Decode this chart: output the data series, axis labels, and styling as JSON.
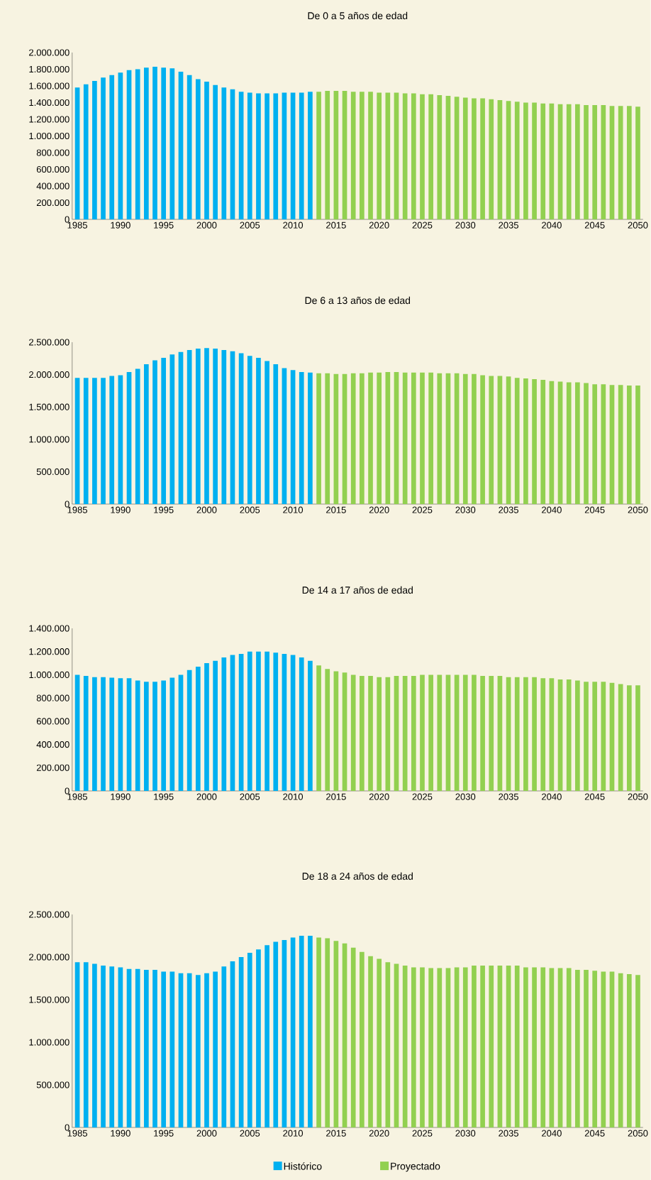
{
  "chart_data": [
    {
      "type": "bar",
      "title": "De 0 a 5 años de edad",
      "xlim": [
        1984.4,
        2050.6
      ],
      "xticks": [
        1985,
        1990,
        1995,
        2000,
        2005,
        2010,
        2015,
        2020,
        2025,
        2030,
        2035,
        2040,
        2045,
        2050
      ],
      "ylim": [
        0,
        2000000
      ],
      "yticks": [
        0,
        {
          "value": 200000,
          "label": "200.000"
        },
        {
          "value": 400000,
          "label": "400.000"
        },
        {
          "value": 600000,
          "label": "600.000"
        },
        {
          "value": 800000,
          "label": "800.000"
        },
        {
          "value": 1000000,
          "label": "1.000.000"
        },
        {
          "value": 1200000,
          "label": "1.200.000"
        },
        {
          "value": 1400000,
          "label": "1.400.000"
        },
        {
          "value": 1600000,
          "label": "1.600.000"
        },
        {
          "value": 1800000,
          "label": "1.800.000"
        },
        {
          "value": 2000000,
          "label": "2.000.000"
        }
      ],
      "series": [
        {
          "color": "#00b0f0",
          "x": [
            1985,
            1986,
            1987,
            1988,
            1989,
            1990,
            1991,
            1992,
            1993,
            1994,
            1995,
            1996,
            1997,
            1998,
            1999,
            2000,
            2001,
            2002,
            2003,
            2004,
            2005,
            2006,
            2007,
            2008,
            2009,
            2010,
            2011,
            2012
          ],
          "values": [
            1580000,
            1620000,
            1660000,
            1700000,
            1730000,
            1760000,
            1790000,
            1800000,
            1820000,
            1830000,
            1820000,
            1810000,
            1770000,
            1730000,
            1680000,
            1650000,
            1610000,
            1580000,
            1560000,
            1530000,
            1520000,
            1510000,
            1510000,
            1510000,
            1520000,
            1520000,
            1520000,
            1530000
          ]
        },
        {
          "color": "#92d050",
          "x": [
            2013,
            2014,
            2015,
            2016,
            2017,
            2018,
            2019,
            2020,
            2021,
            2022,
            2023,
            2024,
            2025,
            2026,
            2027,
            2028,
            2029,
            2030,
            2031,
            2032,
            2033,
            2034,
            2035,
            2036,
            2037,
            2038,
            2039,
            2040,
            2041,
            2042,
            2043,
            2044,
            2045,
            2046,
            2047,
            2048,
            2049,
            2050
          ],
          "values": [
            1530000,
            1540000,
            1540000,
            1540000,
            1530000,
            1530000,
            1530000,
            1520000,
            1520000,
            1520000,
            1510000,
            1510000,
            1500000,
            1500000,
            1490000,
            1480000,
            1470000,
            1460000,
            1450000,
            1450000,
            1440000,
            1430000,
            1420000,
            1410000,
            1400000,
            1400000,
            1390000,
            1390000,
            1380000,
            1380000,
            1380000,
            1370000,
            1370000,
            1370000,
            1360000,
            1360000,
            1360000,
            1350000
          ]
        }
      ]
    },
    {
      "type": "bar",
      "title": "De 6 a 13 años de edad",
      "xlim": [
        1984.4,
        2050.6
      ],
      "xticks": [
        1985,
        1990,
        1995,
        2000,
        2005,
        2010,
        2015,
        2020,
        2025,
        2030,
        2035,
        2040,
        2045,
        2050
      ],
      "ylim": [
        0,
        2500000
      ],
      "yticks": [
        0,
        {
          "value": 500000,
          "label": "500.000"
        },
        {
          "value": 1000000,
          "label": "1.000.000"
        },
        {
          "value": 1500000,
          "label": "1.500.000"
        },
        {
          "value": 2000000,
          "label": "2.000.000"
        },
        {
          "value": 2500000,
          "label": "2.500.000"
        }
      ],
      "series": [
        {
          "color": "#00b0f0",
          "x": [
            1985,
            1986,
            1987,
            1988,
            1989,
            1990,
            1991,
            1992,
            1993,
            1994,
            1995,
            1996,
            1997,
            1998,
            1999,
            2000,
            2001,
            2002,
            2003,
            2004,
            2005,
            2006,
            2007,
            2008,
            2009,
            2010,
            2011,
            2012
          ],
          "values": [
            1950000,
            1950000,
            1950000,
            1950000,
            1980000,
            1990000,
            2040000,
            2090000,
            2160000,
            2220000,
            2260000,
            2310000,
            2350000,
            2380000,
            2400000,
            2410000,
            2400000,
            2380000,
            2360000,
            2330000,
            2290000,
            2260000,
            2210000,
            2160000,
            2100000,
            2070000,
            2040000,
            2030000
          ]
        },
        {
          "color": "#92d050",
          "x": [
            2013,
            2014,
            2015,
            2016,
            2017,
            2018,
            2019,
            2020,
            2021,
            2022,
            2023,
            2024,
            2025,
            2026,
            2027,
            2028,
            2029,
            2030,
            2031,
            2032,
            2033,
            2034,
            2035,
            2036,
            2037,
            2038,
            2039,
            2040,
            2041,
            2042,
            2043,
            2044,
            2045,
            2046,
            2047,
            2048,
            2049,
            2050
          ],
          "values": [
            2020000,
            2020000,
            2010000,
            2010000,
            2020000,
            2020000,
            2030000,
            2030000,
            2040000,
            2040000,
            2030000,
            2030000,
            2030000,
            2030000,
            2020000,
            2020000,
            2020000,
            2010000,
            2010000,
            1990000,
            1980000,
            1980000,
            1970000,
            1950000,
            1940000,
            1930000,
            1920000,
            1900000,
            1890000,
            1880000,
            1880000,
            1870000,
            1850000,
            1850000,
            1840000,
            1840000,
            1830000,
            1830000
          ]
        }
      ]
    },
    {
      "type": "bar",
      "title": "De 14 a 17 años de edad",
      "xlim": [
        1984.4,
        2050.6
      ],
      "xticks": [
        1985,
        1990,
        1995,
        2000,
        2005,
        2010,
        2015,
        2020,
        2025,
        2030,
        2035,
        2040,
        2045,
        2050
      ],
      "ylim": [
        0,
        1400000
      ],
      "yticks": [
        0,
        {
          "value": 200000,
          "label": "200.000"
        },
        {
          "value": 400000,
          "label": "400.000"
        },
        {
          "value": 600000,
          "label": "600.000"
        },
        {
          "value": 800000,
          "label": "800.000"
        },
        {
          "value": 1000000,
          "label": "1.000.000"
        },
        {
          "value": 1200000,
          "label": "1.200.000"
        },
        {
          "value": 1400000,
          "label": "1.400.000"
        }
      ],
      "series": [
        {
          "color": "#00b0f0",
          "x": [
            1985,
            1986,
            1987,
            1988,
            1989,
            1990,
            1991,
            1992,
            1993,
            1994,
            1995,
            1996,
            1997,
            1998,
            1999,
            2000,
            2001,
            2002,
            2003,
            2004,
            2005,
            2006,
            2007,
            2008,
            2009,
            2010,
            2011,
            2012
          ],
          "values": [
            1000000,
            990000,
            980000,
            980000,
            975000,
            970000,
            970000,
            950000,
            940000,
            940000,
            950000,
            975000,
            1000000,
            1040000,
            1070000,
            1100000,
            1120000,
            1150000,
            1170000,
            1180000,
            1200000,
            1200000,
            1200000,
            1190000,
            1180000,
            1170000,
            1150000,
            1120000
          ]
        },
        {
          "color": "#92d050",
          "x": [
            2013,
            2014,
            2015,
            2016,
            2017,
            2018,
            2019,
            2020,
            2021,
            2022,
            2023,
            2024,
            2025,
            2026,
            2027,
            2028,
            2029,
            2030,
            2031,
            2032,
            2033,
            2034,
            2035,
            2036,
            2037,
            2038,
            2039,
            2040,
            2041,
            2042,
            2043,
            2044,
            2045,
            2046,
            2047,
            2048,
            2049,
            2050
          ],
          "values": [
            1080000,
            1050000,
            1030000,
            1020000,
            1000000,
            990000,
            990000,
            980000,
            980000,
            990000,
            990000,
            990000,
            1000000,
            1000000,
            1000000,
            1000000,
            1000000,
            1000000,
            1000000,
            990000,
            990000,
            990000,
            980000,
            980000,
            980000,
            980000,
            970000,
            970000,
            960000,
            960000,
            950000,
            940000,
            940000,
            940000,
            930000,
            920000,
            910000,
            910000
          ]
        }
      ]
    },
    {
      "type": "bar",
      "title": "De 18 a 24 años de edad",
      "xlim": [
        1984.4,
        2050.6
      ],
      "xticks": [
        1985,
        1990,
        1995,
        2000,
        2005,
        2010,
        2015,
        2020,
        2025,
        2030,
        2035,
        2040,
        2045,
        2050
      ],
      "ylim": [
        0,
        2500000
      ],
      "yticks": [
        0,
        {
          "value": 500000,
          "label": "500.000"
        },
        {
          "value": 1000000,
          "label": "1.000.000"
        },
        {
          "value": 1500000,
          "label": "1.500.000"
        },
        {
          "value": 2000000,
          "label": "2.000.000"
        },
        {
          "value": 2500000,
          "label": "2.500.000"
        }
      ],
      "legend": "bottom",
      "series": [
        {
          "name": "Histórico",
          "color": "#00b0f0",
          "x": [
            1985,
            1986,
            1987,
            1988,
            1989,
            1990,
            1991,
            1992,
            1993,
            1994,
            1995,
            1996,
            1997,
            1998,
            1999,
            2000,
            2001,
            2002,
            2003,
            2004,
            2005,
            2006,
            2007,
            2008,
            2009,
            2010,
            2011,
            2012
          ],
          "values": [
            1940000,
            1940000,
            1920000,
            1900000,
            1890000,
            1880000,
            1860000,
            1860000,
            1850000,
            1850000,
            1830000,
            1830000,
            1810000,
            1810000,
            1790000,
            1810000,
            1830000,
            1890000,
            1950000,
            2000000,
            2050000,
            2090000,
            2140000,
            2180000,
            2200000,
            2230000,
            2250000,
            2250000
          ]
        },
        {
          "name": "Proyectado",
          "color": "#92d050",
          "x": [
            2013,
            2014,
            2015,
            2016,
            2017,
            2018,
            2019,
            2020,
            2021,
            2022,
            2023,
            2024,
            2025,
            2026,
            2027,
            2028,
            2029,
            2030,
            2031,
            2032,
            2033,
            2034,
            2035,
            2036,
            2037,
            2038,
            2039,
            2040,
            2041,
            2042,
            2043,
            2044,
            2045,
            2046,
            2047,
            2048,
            2049,
            2050
          ],
          "values": [
            2230000,
            2220000,
            2190000,
            2160000,
            2110000,
            2060000,
            2010000,
            1980000,
            1940000,
            1920000,
            1900000,
            1880000,
            1880000,
            1870000,
            1870000,
            1870000,
            1880000,
            1880000,
            1900000,
            1900000,
            1900000,
            1900000,
            1900000,
            1900000,
            1880000,
            1880000,
            1880000,
            1870000,
            1870000,
            1870000,
            1850000,
            1850000,
            1840000,
            1830000,
            1830000,
            1810000,
            1800000,
            1790000
          ]
        }
      ]
    }
  ]
}
